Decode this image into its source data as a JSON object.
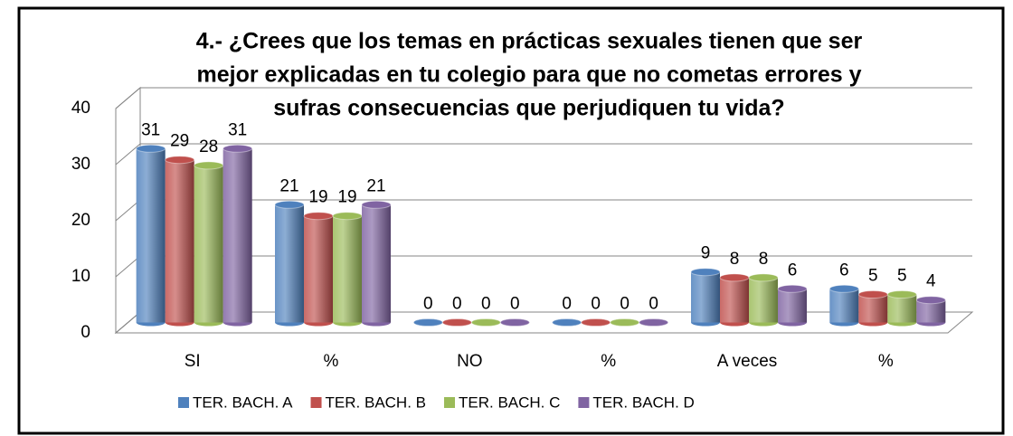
{
  "chart_data": {
    "type": "bar3d",
    "title": [
      "4.- ¿Crees que los temas en  prácticas sexuales tienen que ser",
      "mejor explicadas en tu colegio para que no cometas errores y",
      "sufras consecuencias que perjudiquen tu vida?"
    ],
    "categories": [
      "SI",
      "%",
      "NO",
      "%",
      "A veces",
      "%"
    ],
    "series": [
      {
        "name": "TER. BACH. A",
        "color": "#4f81bd",
        "values": [
          31,
          21,
          0,
          0,
          9,
          6
        ]
      },
      {
        "name": "TER. BACH. B",
        "color": "#c0504d",
        "values": [
          29,
          19,
          0,
          0,
          8,
          5
        ]
      },
      {
        "name": "TER. BACH. C",
        "color": "#9bbb59",
        "values": [
          28,
          19,
          0,
          0,
          8,
          5
        ]
      },
      {
        "name": "TER. BACH. D",
        "color": "#8064a2",
        "values": [
          31,
          21,
          0,
          0,
          6,
          4
        ]
      }
    ],
    "ylim": [
      0,
      40
    ],
    "yticks": [
      0,
      10,
      20,
      30,
      40
    ],
    "grid": true,
    "legend": "bottom"
  }
}
